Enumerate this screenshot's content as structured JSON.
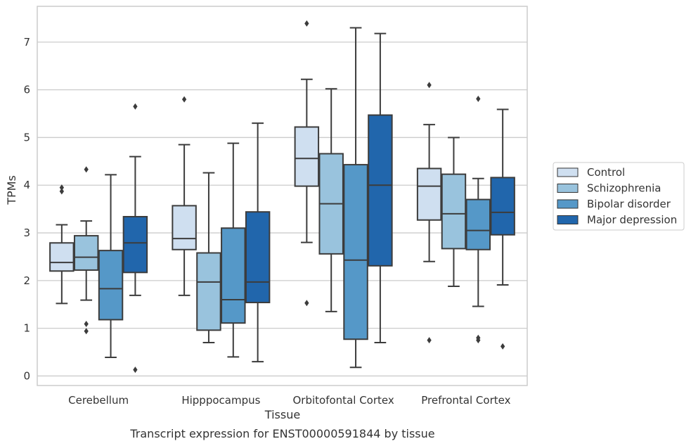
{
  "chart_data": {
    "type": "box",
    "title": "",
    "caption": "Transcript expression for ENST00000591844 by tissue",
    "xlabel": "Tissue",
    "ylabel": "TPMs",
    "ylim": [
      -0.2,
      7.75
    ],
    "yticks": [
      0,
      1,
      2,
      3,
      4,
      5,
      6,
      7
    ],
    "grid": "horizontal",
    "legend_position": "right",
    "categories": [
      "Cerebellum",
      "Hipppocampus",
      "Orbitofontal Cortex",
      "Prefrontal Cortex"
    ],
    "series": [
      {
        "name": "Control",
        "color": "#cfdff0",
        "boxes": [
          {
            "whisker_low": 1.52,
            "q1": 2.2,
            "median": 2.38,
            "q3": 2.79,
            "whisker_high": 3.17,
            "outliers": [
              3.87,
              3.95
            ]
          },
          {
            "whisker_low": 1.69,
            "q1": 2.65,
            "median": 2.88,
            "q3": 3.57,
            "whisker_high": 4.85,
            "outliers": [
              5.8
            ]
          },
          {
            "whisker_low": 2.8,
            "q1": 3.98,
            "median": 4.56,
            "q3": 5.22,
            "whisker_high": 6.22,
            "outliers": [
              7.39,
              1.53
            ]
          },
          {
            "whisker_low": 2.4,
            "q1": 3.27,
            "median": 3.98,
            "q3": 4.35,
            "whisker_high": 5.27,
            "outliers": [
              6.1,
              0.75
            ]
          }
        ]
      },
      {
        "name": "Schizophrenia",
        "color": "#99c3dd",
        "boxes": [
          {
            "whisker_low": 1.59,
            "q1": 2.22,
            "median": 2.49,
            "q3": 2.94,
            "whisker_high": 3.25,
            "outliers": [
              4.33,
              1.09,
              0.94
            ]
          },
          {
            "whisker_low": 0.7,
            "q1": 0.96,
            "median": 1.97,
            "q3": 2.58,
            "whisker_high": 4.26,
            "outliers": []
          },
          {
            "whisker_low": 1.35,
            "q1": 2.56,
            "median": 3.61,
            "q3": 4.66,
            "whisker_high": 6.02,
            "outliers": []
          },
          {
            "whisker_low": 1.88,
            "q1": 2.67,
            "median": 3.4,
            "q3": 4.23,
            "whisker_high": 5.0,
            "outliers": []
          }
        ]
      },
      {
        "name": "Bipolar disorder",
        "color": "#5598c8",
        "boxes": [
          {
            "whisker_low": 0.39,
            "q1": 1.18,
            "median": 1.83,
            "q3": 2.63,
            "whisker_high": 4.22,
            "outliers": []
          },
          {
            "whisker_low": 0.4,
            "q1": 1.11,
            "median": 1.6,
            "q3": 3.1,
            "whisker_high": 4.88,
            "outliers": []
          },
          {
            "whisker_low": 0.18,
            "q1": 0.77,
            "median": 2.43,
            "q3": 4.43,
            "whisker_high": 7.3,
            "outliers": []
          },
          {
            "whisker_low": 1.46,
            "q1": 2.65,
            "median": 3.05,
            "q3": 3.7,
            "whisker_high": 4.14,
            "outliers": [
              5.81,
              0.8,
              0.75
            ]
          }
        ]
      },
      {
        "name": "Major depression",
        "color": "#2166ac",
        "boxes": [
          {
            "whisker_low": 1.69,
            "q1": 2.17,
            "median": 2.79,
            "q3": 3.34,
            "whisker_high": 4.6,
            "outliers": [
              5.65,
              0.13
            ]
          },
          {
            "whisker_low": 0.3,
            "q1": 1.54,
            "median": 1.97,
            "q3": 3.44,
            "whisker_high": 5.3,
            "outliers": []
          },
          {
            "whisker_low": 0.7,
            "q1": 2.31,
            "median": 4.0,
            "q3": 5.47,
            "whisker_high": 7.18,
            "outliers": []
          },
          {
            "whisker_low": 1.91,
            "q1": 2.96,
            "median": 3.43,
            "q3": 4.16,
            "whisker_high": 5.59,
            "outliers": [
              0.62
            ]
          }
        ]
      }
    ]
  }
}
